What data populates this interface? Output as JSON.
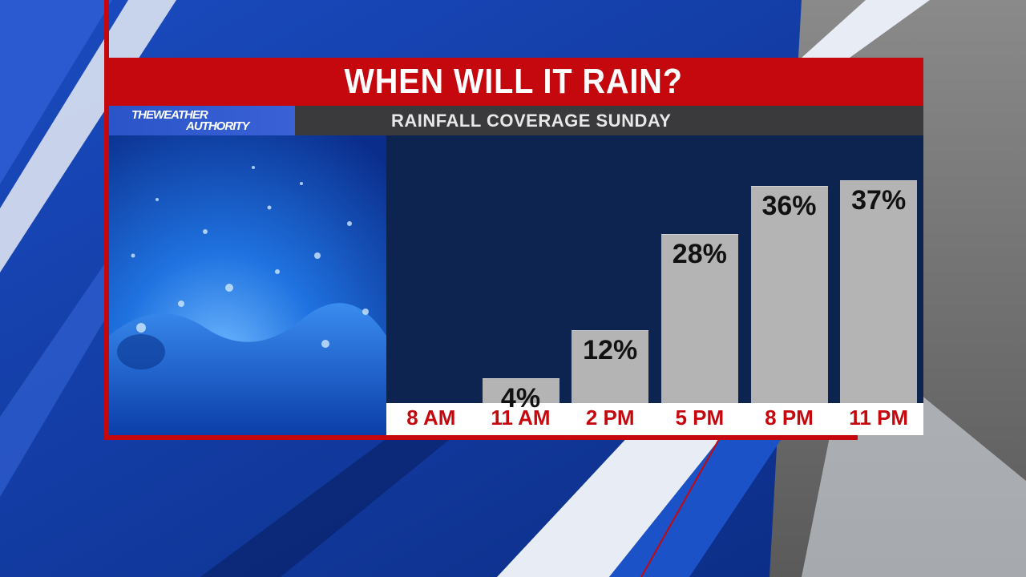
{
  "title": "WHEN WILL IT RAIN?",
  "subtitle": "RAINFALL COVERAGE SUNDAY",
  "logo": {
    "line1": "THEWEATHER",
    "line2": "AUTHORITY"
  },
  "colors": {
    "title_bar": "#c4080e",
    "bar": "#b4b4b4",
    "label": "#c4080e"
  },
  "chart_data": {
    "type": "bar",
    "categories": [
      "8 AM",
      "11 AM",
      "2 PM",
      "5 PM",
      "8 PM",
      "11 PM"
    ],
    "values": [
      0,
      4,
      12,
      28,
      36,
      37
    ],
    "value_labels": [
      "",
      "4%",
      "12%",
      "28%",
      "36%",
      "37%"
    ],
    "ylim": [
      0,
      40
    ],
    "grid": false,
    "legend": "none"
  }
}
